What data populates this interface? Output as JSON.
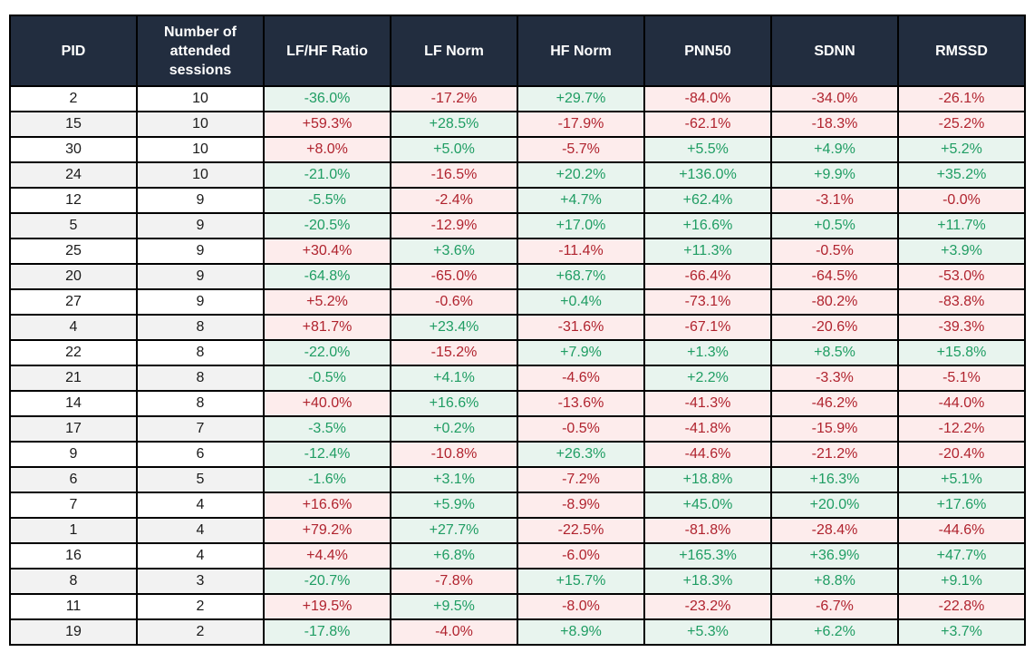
{
  "colors": {
    "header_bg": "#222d3f",
    "header_text": "#ffffff",
    "positive_text": "#1f9d63",
    "positive_bg": "#e8f4ee",
    "negative_text": "#b0232e",
    "negative_bg": "#fdecec",
    "row_alt_bg": "#f2f2f2",
    "border": "#000000"
  },
  "chart_data": {
    "type": "table",
    "title": "",
    "columns": [
      "PID",
      "Number of attended sessions",
      "LF/HF Ratio",
      "LF Norm",
      "HF Norm",
      "PNN50",
      "SDNN",
      "RMSSD"
    ],
    "color_semantics": "green text on light-green background = favorable change; dark-red text on light-pink background = unfavorable change; LF/HF Ratio favorable when negative, all other metrics favorable when positive",
    "rows": [
      {
        "pid": "2",
        "sessions": "10",
        "metrics": [
          [
            "-36.0%",
            "green"
          ],
          [
            "-17.2%",
            "red"
          ],
          [
            "+29.7%",
            "green"
          ],
          [
            "-84.0%",
            "red"
          ],
          [
            "-34.0%",
            "red"
          ],
          [
            "-26.1%",
            "red"
          ]
        ]
      },
      {
        "pid": "15",
        "sessions": "10",
        "metrics": [
          [
            "+59.3%",
            "red"
          ],
          [
            "+28.5%",
            "green"
          ],
          [
            "-17.9%",
            "red"
          ],
          [
            "-62.1%",
            "red"
          ],
          [
            "-18.3%",
            "red"
          ],
          [
            "-25.2%",
            "red"
          ]
        ]
      },
      {
        "pid": "30",
        "sessions": "10",
        "metrics": [
          [
            "+8.0%",
            "red"
          ],
          [
            "+5.0%",
            "green"
          ],
          [
            "-5.7%",
            "red"
          ],
          [
            "+5.5%",
            "green"
          ],
          [
            "+4.9%",
            "green"
          ],
          [
            "+5.2%",
            "green"
          ]
        ]
      },
      {
        "pid": "24",
        "sessions": "10",
        "metrics": [
          [
            "-21.0%",
            "green"
          ],
          [
            "-16.5%",
            "red"
          ],
          [
            "+20.2%",
            "green"
          ],
          [
            "+136.0%",
            "green"
          ],
          [
            "+9.9%",
            "green"
          ],
          [
            "+35.2%",
            "green"
          ]
        ]
      },
      {
        "pid": "12",
        "sessions": "9",
        "metrics": [
          [
            "-5.5%",
            "green"
          ],
          [
            "-2.4%",
            "red"
          ],
          [
            "+4.7%",
            "green"
          ],
          [
            "+62.4%",
            "green"
          ],
          [
            "-3.1%",
            "red"
          ],
          [
            "-0.0%",
            "red"
          ]
        ]
      },
      {
        "pid": "5",
        "sessions": "9",
        "metrics": [
          [
            "-20.5%",
            "green"
          ],
          [
            "-12.9%",
            "red"
          ],
          [
            "+17.0%",
            "green"
          ],
          [
            "+16.6%",
            "green"
          ],
          [
            "+0.5%",
            "green"
          ],
          [
            "+11.7%",
            "green"
          ]
        ]
      },
      {
        "pid": "25",
        "sessions": "9",
        "metrics": [
          [
            "+30.4%",
            "red"
          ],
          [
            "+3.6%",
            "green"
          ],
          [
            "-11.4%",
            "red"
          ],
          [
            "+11.3%",
            "green"
          ],
          [
            "-0.5%",
            "red"
          ],
          [
            "+3.9%",
            "green"
          ]
        ]
      },
      {
        "pid": "20",
        "sessions": "9",
        "metrics": [
          [
            "-64.8%",
            "green"
          ],
          [
            "-65.0%",
            "red"
          ],
          [
            "+68.7%",
            "green"
          ],
          [
            "-66.4%",
            "red"
          ],
          [
            "-64.5%",
            "red"
          ],
          [
            "-53.0%",
            "red"
          ]
        ]
      },
      {
        "pid": "27",
        "sessions": "9",
        "metrics": [
          [
            "+5.2%",
            "red"
          ],
          [
            "-0.6%",
            "red"
          ],
          [
            "+0.4%",
            "green"
          ],
          [
            "-73.1%",
            "red"
          ],
          [
            "-80.2%",
            "red"
          ],
          [
            "-83.8%",
            "red"
          ]
        ]
      },
      {
        "pid": "4",
        "sessions": "8",
        "metrics": [
          [
            "+81.7%",
            "red"
          ],
          [
            "+23.4%",
            "green"
          ],
          [
            "-31.6%",
            "red"
          ],
          [
            "-67.1%",
            "red"
          ],
          [
            "-20.6%",
            "red"
          ],
          [
            "-39.3%",
            "red"
          ]
        ]
      },
      {
        "pid": "22",
        "sessions": "8",
        "metrics": [
          [
            "-22.0%",
            "green"
          ],
          [
            "-15.2%",
            "red"
          ],
          [
            "+7.9%",
            "green"
          ],
          [
            "+1.3%",
            "green"
          ],
          [
            "+8.5%",
            "green"
          ],
          [
            "+15.8%",
            "green"
          ]
        ]
      },
      {
        "pid": "21",
        "sessions": "8",
        "metrics": [
          [
            "-0.5%",
            "green"
          ],
          [
            "+4.1%",
            "green"
          ],
          [
            "-4.6%",
            "red"
          ],
          [
            "+2.2%",
            "green"
          ],
          [
            "-3.3%",
            "red"
          ],
          [
            "-5.1%",
            "red"
          ]
        ]
      },
      {
        "pid": "14",
        "sessions": "8",
        "metrics": [
          [
            "+40.0%",
            "red"
          ],
          [
            "+16.6%",
            "green"
          ],
          [
            "-13.6%",
            "red"
          ],
          [
            "-41.3%",
            "red"
          ],
          [
            "-46.2%",
            "red"
          ],
          [
            "-44.0%",
            "red"
          ]
        ]
      },
      {
        "pid": "17",
        "sessions": "7",
        "metrics": [
          [
            "-3.5%",
            "green"
          ],
          [
            "+0.2%",
            "green"
          ],
          [
            "-0.5%",
            "red"
          ],
          [
            "-41.8%",
            "red"
          ],
          [
            "-15.9%",
            "red"
          ],
          [
            "-12.2%",
            "red"
          ]
        ]
      },
      {
        "pid": "9",
        "sessions": "6",
        "metrics": [
          [
            "-12.4%",
            "green"
          ],
          [
            "-10.8%",
            "red"
          ],
          [
            "+26.3%",
            "green"
          ],
          [
            "-44.6%",
            "red"
          ],
          [
            "-21.2%",
            "red"
          ],
          [
            "-20.4%",
            "red"
          ]
        ]
      },
      {
        "pid": "6",
        "sessions": "5",
        "metrics": [
          [
            "-1.6%",
            "green"
          ],
          [
            "+3.1%",
            "green"
          ],
          [
            "-7.2%",
            "red"
          ],
          [
            "+18.8%",
            "green"
          ],
          [
            "+16.3%",
            "green"
          ],
          [
            "+5.1%",
            "green"
          ]
        ]
      },
      {
        "pid": "7",
        "sessions": "4",
        "metrics": [
          [
            "+16.6%",
            "red"
          ],
          [
            "+5.9%",
            "green"
          ],
          [
            "-8.9%",
            "red"
          ],
          [
            "+45.0%",
            "green"
          ],
          [
            "+20.0%",
            "green"
          ],
          [
            "+17.6%",
            "green"
          ]
        ]
      },
      {
        "pid": "1",
        "sessions": "4",
        "metrics": [
          [
            "+79.2%",
            "red"
          ],
          [
            "+27.7%",
            "green"
          ],
          [
            "-22.5%",
            "red"
          ],
          [
            "-81.8%",
            "red"
          ],
          [
            "-28.4%",
            "red"
          ],
          [
            "-44.6%",
            "red"
          ]
        ]
      },
      {
        "pid": "16",
        "sessions": "4",
        "metrics": [
          [
            "+4.4%",
            "red"
          ],
          [
            "+6.8%",
            "green"
          ],
          [
            "-6.0%",
            "red"
          ],
          [
            "+165.3%",
            "green"
          ],
          [
            "+36.9%",
            "green"
          ],
          [
            "+47.7%",
            "green"
          ]
        ]
      },
      {
        "pid": "8",
        "sessions": "3",
        "metrics": [
          [
            "-20.7%",
            "green"
          ],
          [
            "-7.8%",
            "red"
          ],
          [
            "+15.7%",
            "green"
          ],
          [
            "+18.3%",
            "green"
          ],
          [
            "+8.8%",
            "green"
          ],
          [
            "+9.1%",
            "green"
          ]
        ]
      },
      {
        "pid": "11",
        "sessions": "2",
        "metrics": [
          [
            "+19.5%",
            "red"
          ],
          [
            "+9.5%",
            "green"
          ],
          [
            "-8.0%",
            "red"
          ],
          [
            "-23.2%",
            "red"
          ],
          [
            "-6.7%",
            "red"
          ],
          [
            "-22.8%",
            "red"
          ]
        ]
      },
      {
        "pid": "19",
        "sessions": "2",
        "metrics": [
          [
            "-17.8%",
            "green"
          ],
          [
            "-4.0%",
            "red"
          ],
          [
            "+8.9%",
            "green"
          ],
          [
            "+5.3%",
            "green"
          ],
          [
            "+6.2%",
            "green"
          ],
          [
            "+3.7%",
            "green"
          ]
        ]
      }
    ]
  }
}
